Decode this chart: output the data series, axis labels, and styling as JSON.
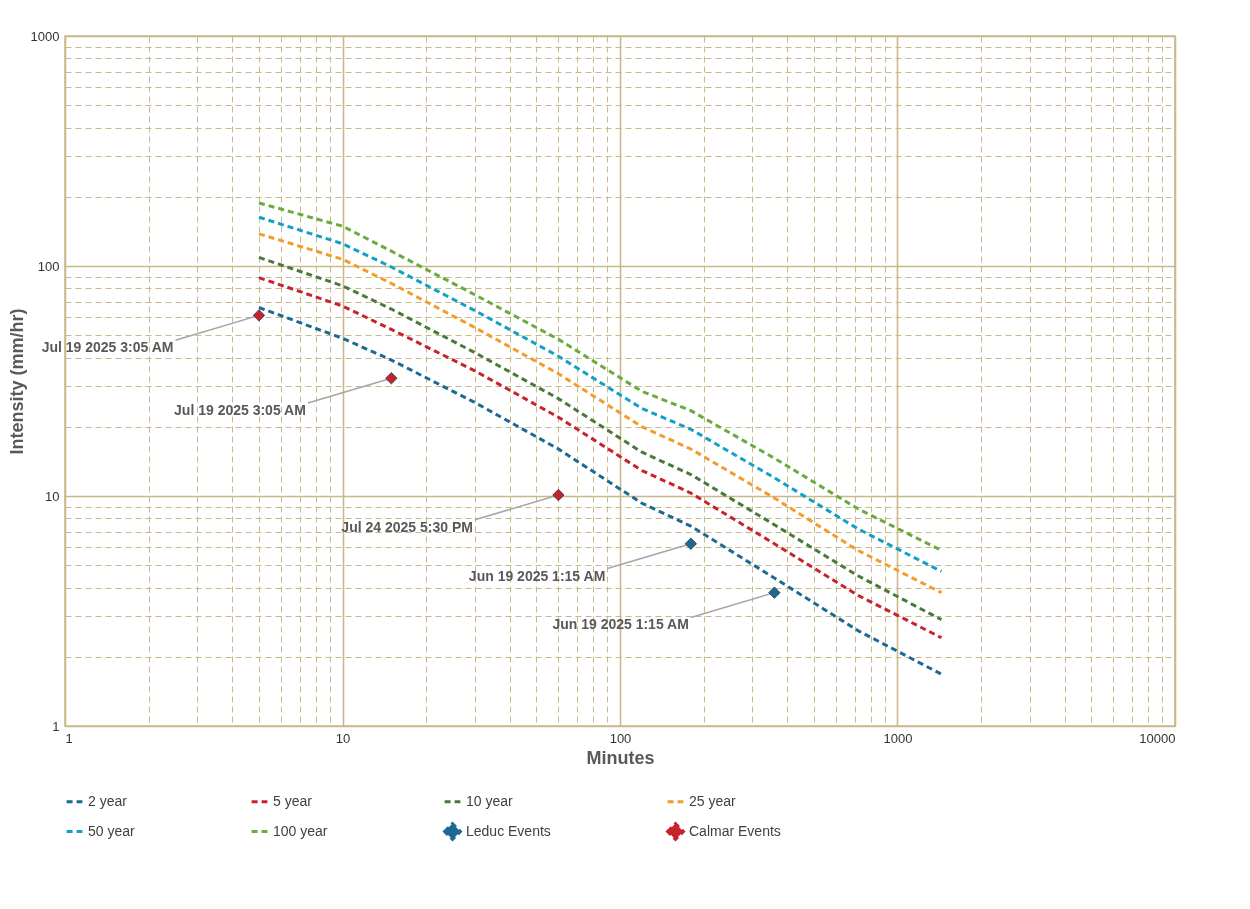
{
  "chart_data": {
    "type": "line",
    "xlabel": "Minutes",
    "ylabel": "Intensity (mm/hr)",
    "log": "xy",
    "grid": true,
    "legend": "bottom",
    "line_style": "dashed",
    "xlim": [
      1,
      10000
    ],
    "ylim": [
      1,
      1000
    ],
    "xticks": [
      1,
      {
        "value": 2,
        "label": null
      },
      {
        "value": 3,
        "label": null
      },
      {
        "value": 4,
        "label": null
      },
      {
        "value": 5,
        "label": null
      },
      {
        "value": 6,
        "label": null
      },
      {
        "value": 7,
        "label": null
      },
      {
        "value": 8,
        "label": null
      },
      {
        "value": 9,
        "label": null
      },
      10,
      {
        "value": 20,
        "label": null
      },
      {
        "value": 30,
        "label": null
      },
      {
        "value": 40,
        "label": null
      },
      {
        "value": 50,
        "label": null
      },
      {
        "value": 60,
        "label": null
      },
      {
        "value": 70,
        "label": null
      },
      {
        "value": 80,
        "label": null
      },
      {
        "value": 90,
        "label": null
      },
      100,
      {
        "value": 200,
        "label": null
      },
      {
        "value": 300,
        "label": null
      },
      {
        "value": 400,
        "label": null
      },
      {
        "value": 500,
        "label": null
      },
      {
        "value": 600,
        "label": null
      },
      {
        "value": 700,
        "label": null
      },
      {
        "value": 800,
        "label": null
      },
      {
        "value": 900,
        "label": null
      },
      1000,
      {
        "value": 2000,
        "label": null
      },
      {
        "value": 3000,
        "label": null
      },
      {
        "value": 4000,
        "label": null
      },
      {
        "value": 5000,
        "label": null
      },
      {
        "value": 6000,
        "label": null
      },
      {
        "value": 7000,
        "label": null
      },
      {
        "value": 8000,
        "label": null
      },
      {
        "value": 9000,
        "label": null
      },
      10000
    ],
    "yticks": [
      1,
      {
        "value": 2,
        "label": null
      },
      {
        "value": 3,
        "label": null
      },
      {
        "value": 4,
        "label": null
      },
      {
        "value": 5,
        "label": null
      },
      {
        "value": 6,
        "label": null
      },
      {
        "value": 7,
        "label": null
      },
      {
        "value": 8,
        "label": null
      },
      {
        "value": 9,
        "label": null
      },
      10,
      {
        "value": 20,
        "label": null
      },
      {
        "value": 30,
        "label": null
      },
      {
        "value": 40,
        "label": null
      },
      {
        "value": 50,
        "label": null
      },
      {
        "value": 60,
        "label": null
      },
      {
        "value": 70,
        "label": null
      },
      {
        "value": 80,
        "label": null
      },
      {
        "value": 90,
        "label": null
      },
      100,
      {
        "value": 200,
        "label": null
      },
      {
        "value": 300,
        "label": null
      },
      {
        "value": 400,
        "label": null
      },
      {
        "value": 500,
        "label": null
      },
      {
        "value": 600,
        "label": null
      },
      {
        "value": 700,
        "label": null
      },
      {
        "value": 800,
        "label": null
      },
      {
        "value": 900,
        "label": null
      },
      1000
    ],
    "x": [
      5,
      10,
      15,
      30,
      60,
      120,
      180,
      360,
      720,
      1440
    ],
    "series": [
      {
        "name": "2 year",
        "color": "#1b6a92",
        "values": [
          66,
          48.5,
          39,
          25.5,
          16,
          9.3,
          7.4,
          4.4,
          2.6,
          1.68
        ]
      },
      {
        "name": "5 year",
        "color": "#c8232c",
        "values": [
          89,
          67,
          53,
          35,
          22,
          12.9,
          10.3,
          6.2,
          3.7,
          2.42
        ]
      },
      {
        "name": "10 year",
        "color": "#4a7a3a",
        "values": [
          109,
          82,
          65,
          42,
          26.5,
          15.5,
          12.4,
          7.5,
          4.5,
          2.9
        ]
      },
      {
        "name": "25 year",
        "color": "#f39c2b",
        "values": [
          138,
          107,
          84,
          54,
          34,
          20,
          16,
          9.8,
          5.8,
          3.8
        ]
      },
      {
        "name": "50 year",
        "color": "#10a0c8",
        "values": [
          163,
          125,
          99,
          64,
          40.5,
          24,
          19.5,
          12,
          7.2,
          4.7
        ]
      },
      {
        "name": "100 year",
        "color": "#6aab3e",
        "values": [
          188,
          149,
          116,
          75,
          48,
          28.5,
          23.5,
          14.6,
          8.8,
          5.8
        ]
      },
      {
        "name": "Leduc Events",
        "type": "scatter",
        "marker": "diamond",
        "color": "#1b6a92",
        "x": [
          180,
          360
        ],
        "values": [
          6.2,
          3.8
        ]
      },
      {
        "name": "Calmar Events",
        "type": "scatter",
        "marker": "diamond",
        "color": "#c8232c",
        "x": [
          5,
          15,
          60
        ],
        "values": [
          61,
          32.5,
          10.1
        ]
      }
    ],
    "annotations": [
      {
        "text": "Jul 19 2025 3:05 AM",
        "x": 5,
        "y": 61
      },
      {
        "text": "Jul 19 2025 3:05 AM",
        "x": 15,
        "y": 32.5
      },
      {
        "text": "Jul 24 2025 5:30 PM",
        "x": 60,
        "y": 10.1
      },
      {
        "text": "Jun 19 2025 1:15 AM",
        "x": 180,
        "y": 6.2
      },
      {
        "text": "Jun 19 2025 1:15 AM",
        "x": 360,
        "y": 3.8
      }
    ]
  }
}
